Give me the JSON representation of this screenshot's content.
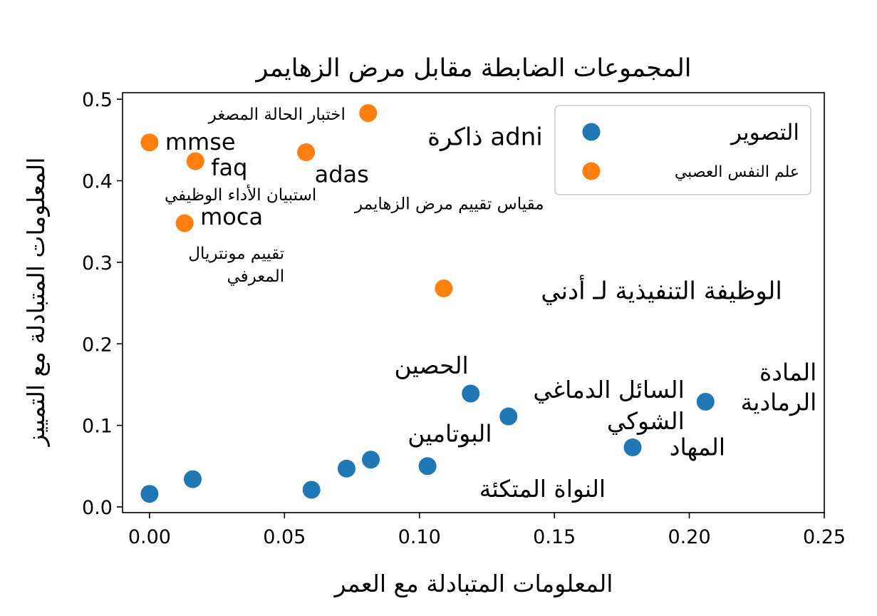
{
  "chart_data": {
    "type": "scatter",
    "title": "المجموعات الضابطة مقابل مرض الزهايمر",
    "xlabel": "المعلومات المتبادلة مع العمر",
    "ylabel": "المعلومات المتبادلة مع التمييز",
    "xlim": [
      -0.01,
      0.25
    ],
    "ylim": [
      -0.007,
      0.508
    ],
    "x_ticks": [
      0.0,
      0.05,
      0.1,
      0.15,
      0.2,
      0.25
    ],
    "x_tick_labels": [
      "0.00",
      "0.05",
      "0.10",
      "0.15",
      "0.20",
      "0.25"
    ],
    "y_ticks": [
      0.0,
      0.1,
      0.2,
      0.3,
      0.4,
      0.5
    ],
    "y_tick_labels": [
      "0.0",
      "0.1",
      "0.2",
      "0.3",
      "0.4",
      "0.5"
    ],
    "grid": false,
    "legend": "top-right",
    "series": [
      {
        "name": "التصوير",
        "color": "#1f77b4",
        "points": [
          {
            "x": 0.0,
            "y": 0.016,
            "label": ""
          },
          {
            "x": 0.016,
            "y": 0.034,
            "label": ""
          },
          {
            "x": 0.06,
            "y": 0.021,
            "label": ""
          },
          {
            "x": 0.073,
            "y": 0.047,
            "label": ""
          },
          {
            "x": 0.082,
            "y": 0.058,
            "label": "البوتامين"
          },
          {
            "x": 0.103,
            "y": 0.05,
            "label": "النواة المتكئة"
          },
          {
            "x": 0.119,
            "y": 0.139,
            "label": "الحصين"
          },
          {
            "x": 0.133,
            "y": 0.111,
            "label": "السائل الدماغي الشوكي"
          },
          {
            "x": 0.179,
            "y": 0.073,
            "label": "المهاد"
          },
          {
            "x": 0.206,
            "y": 0.129,
            "label": "المادة الرمادية"
          }
        ]
      },
      {
        "name": "علم النفس العصبي",
        "color": "#ff7f0e",
        "points": [
          {
            "x": 0.0,
            "y": 0.447,
            "label": "mmse",
            "sublabel": "اختبار الحالة المصغر"
          },
          {
            "x": 0.017,
            "y": 0.424,
            "label": "faq",
            "sublabel": "استبيان الأداء الوظيفي"
          },
          {
            "x": 0.013,
            "y": 0.348,
            "label": "moca",
            "sublabel": "تقييم مونتريال المعرفي"
          },
          {
            "x": 0.058,
            "y": 0.435,
            "label": "adas",
            "sublabel": "مقياس تقييم مرض الزهايمر"
          },
          {
            "x": 0.081,
            "y": 0.483,
            "label": "ذاكرة adni"
          },
          {
            "x": 0.109,
            "y": 0.268,
            "label": "الوظيفة التنفيذية لـ أدني"
          }
        ]
      }
    ]
  }
}
